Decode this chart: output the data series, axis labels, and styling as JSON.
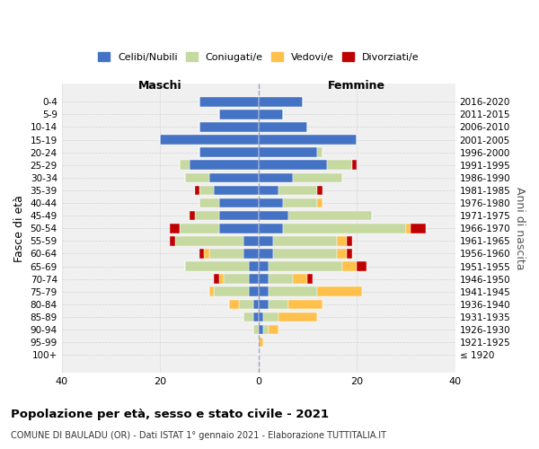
{
  "age_groups": [
    "0-4",
    "5-9",
    "10-14",
    "15-19",
    "20-24",
    "25-29",
    "30-34",
    "35-39",
    "40-44",
    "45-49",
    "50-54",
    "55-59",
    "60-64",
    "65-69",
    "70-74",
    "75-79",
    "80-84",
    "85-89",
    "90-94",
    "95-99",
    "100+"
  ],
  "birth_years": [
    "2016-2020",
    "2011-2015",
    "2006-2010",
    "2001-2005",
    "1996-2000",
    "1991-1995",
    "1986-1990",
    "1981-1985",
    "1976-1980",
    "1971-1975",
    "1966-1970",
    "1961-1965",
    "1956-1960",
    "1951-1955",
    "1946-1950",
    "1941-1945",
    "1936-1940",
    "1931-1935",
    "1926-1930",
    "1921-1925",
    "≤ 1920"
  ],
  "maschi": {
    "celibi": [
      12,
      8,
      12,
      20,
      12,
      14,
      10,
      9,
      8,
      8,
      8,
      3,
      3,
      2,
      2,
      2,
      1,
      1,
      0,
      0,
      0
    ],
    "coniugati": [
      0,
      0,
      0,
      0,
      0,
      2,
      5,
      3,
      4,
      5,
      8,
      14,
      7,
      13,
      5,
      7,
      3,
      2,
      1,
      0,
      0
    ],
    "vedovi": [
      0,
      0,
      0,
      0,
      0,
      0,
      0,
      0,
      0,
      0,
      0,
      0,
      1,
      0,
      1,
      1,
      2,
      0,
      0,
      0,
      0
    ],
    "divorziati": [
      0,
      0,
      0,
      0,
      0,
      0,
      0,
      1,
      0,
      1,
      2,
      1,
      1,
      0,
      1,
      0,
      0,
      0,
      0,
      0,
      0
    ]
  },
  "femmine": {
    "nubili": [
      9,
      5,
      10,
      20,
      12,
      14,
      7,
      4,
      5,
      6,
      5,
      3,
      3,
      2,
      2,
      2,
      2,
      1,
      1,
      0,
      0
    ],
    "coniugate": [
      0,
      0,
      0,
      0,
      1,
      5,
      10,
      8,
      7,
      17,
      25,
      13,
      13,
      15,
      5,
      10,
      4,
      3,
      1,
      0,
      0
    ],
    "vedove": [
      0,
      0,
      0,
      0,
      0,
      0,
      0,
      0,
      1,
      0,
      1,
      2,
      2,
      3,
      3,
      9,
      7,
      8,
      2,
      1,
      0
    ],
    "divorziate": [
      0,
      0,
      0,
      0,
      0,
      1,
      0,
      1,
      0,
      0,
      3,
      1,
      1,
      2,
      1,
      0,
      0,
      0,
      0,
      0,
      0
    ]
  },
  "colors": {
    "celibi_nubili": "#4472c4",
    "coniugati": "#c5d9a0",
    "vedovi": "#ffc04c",
    "divorziati": "#c00000"
  },
  "xlim": [
    -40,
    40
  ],
  "xticks": [
    -40,
    -20,
    0,
    20,
    40
  ],
  "xticklabels": [
    "40",
    "20",
    "0",
    "20",
    "40"
  ],
  "title": "Popolazione per età, sesso e stato civile - 2021",
  "subtitle": "COMUNE DI BAULADU (OR) - Dati ISTAT 1° gennaio 2021 - Elaborazione TUTTITALIA.IT",
  "ylabel": "Fasce di età",
  "ylabel2": "Anni di nascita",
  "legend_labels": [
    "Celibi/Nubili",
    "Coniugati/e",
    "Vedovi/e",
    "Divorziati/e"
  ],
  "maschi_label": "Maschi",
  "femmine_label": "Femmine",
  "bg_color": "#f0f0f0",
  "grid_color": "#cccccc"
}
